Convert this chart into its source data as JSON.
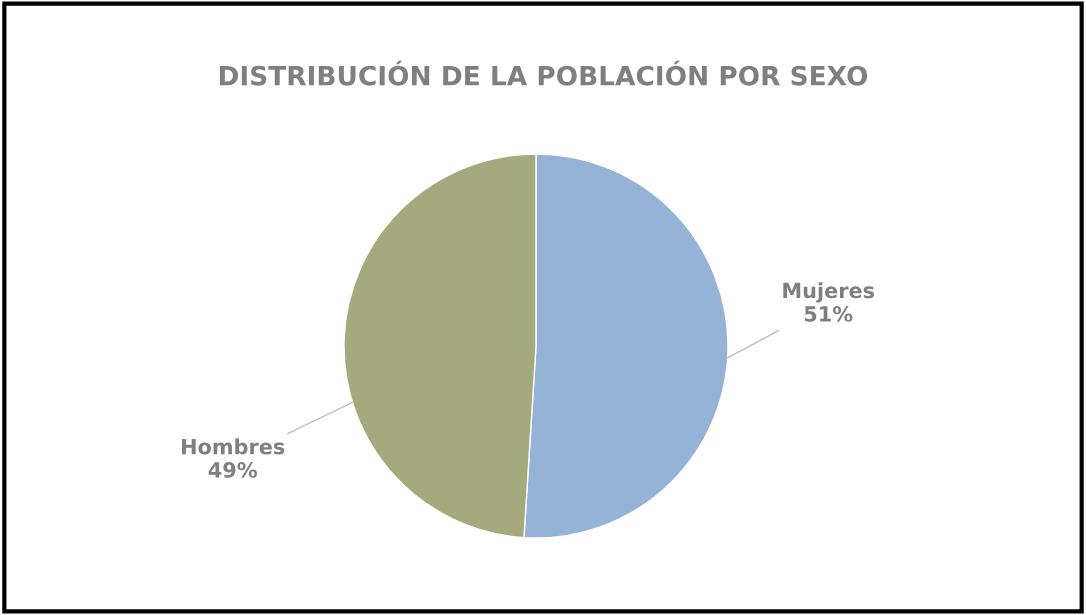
{
  "chart_data": {
    "type": "pie",
    "title": "DISTRIBUCIÓN DE LA POBLACIÓN POR SEXO",
    "categories": [
      "Mujeres",
      "Hombres"
    ],
    "values": [
      51,
      49
    ],
    "value_labels": [
      "51%",
      "49%"
    ],
    "colors": [
      "#95b3d7",
      "#a4aa7e"
    ]
  }
}
